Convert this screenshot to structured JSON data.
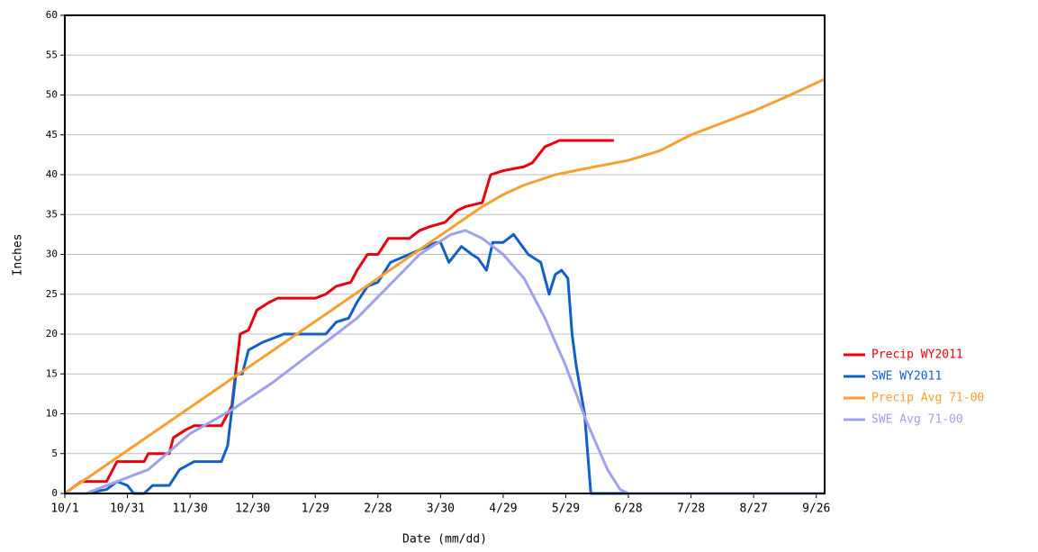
{
  "chart_data": {
    "type": "line",
    "xlabel": "Date (mm/dd)",
    "ylabel": "Inches",
    "xlim": [
      0,
      364
    ],
    "ylim": [
      0,
      60
    ],
    "yticks": [
      0,
      5,
      10,
      15,
      20,
      25,
      30,
      35,
      40,
      45,
      50,
      55,
      60
    ],
    "xticks": [
      {
        "value": 0,
        "label": "10/1"
      },
      {
        "value": 30,
        "label": "10/31"
      },
      {
        "value": 60,
        "label": "11/30"
      },
      {
        "value": 90,
        "label": "12/30"
      },
      {
        "value": 120,
        "label": "1/29"
      },
      {
        "value": 150,
        "label": "2/28"
      },
      {
        "value": 180,
        "label": "3/30"
      },
      {
        "value": 210,
        "label": "4/29"
      },
      {
        "value": 240,
        "label": "5/29"
      },
      {
        "value": 270,
        "label": "6/28"
      },
      {
        "value": 300,
        "label": "7/28"
      },
      {
        "value": 330,
        "label": "8/27"
      },
      {
        "value": 360,
        "label": "9/26"
      }
    ],
    "grid": true,
    "legend": "right",
    "series": [
      {
        "name": "Precip WY2011",
        "color": "#e8000e",
        "x": [
          0,
          8,
          20,
          25,
          38,
          40,
          50,
          52,
          58,
          62,
          75,
          80,
          84,
          88,
          92,
          98,
          102,
          120,
          125,
          130,
          137,
          140,
          145,
          150,
          155,
          165,
          170,
          175,
          182,
          188,
          192,
          200,
          204,
          210,
          220,
          224,
          230,
          237,
          263
        ],
        "values": [
          0,
          1.5,
          1.5,
          4,
          4,
          5,
          5,
          7,
          8,
          8.5,
          8.5,
          11,
          20,
          20.5,
          23,
          24,
          24.5,
          24.5,
          25,
          26,
          26.5,
          28,
          30,
          30,
          32,
          32,
          33,
          33.5,
          34,
          35.5,
          36,
          36.5,
          40,
          40.5,
          41,
          41.5,
          43.5,
          44.3,
          44.3
        ]
      },
      {
        "name": "SWE WY2011",
        "color": "#1060c8",
        "x": [
          0,
          10,
          20,
          25,
          30,
          33,
          38,
          42,
          50,
          55,
          62,
          75,
          78,
          82,
          85,
          88,
          95,
          105,
          125,
          130,
          136,
          140,
          145,
          150,
          156,
          165,
          178,
          180,
          184,
          190,
          195,
          198,
          202,
          205,
          210,
          215,
          222,
          228,
          232,
          235,
          238,
          241,
          243,
          245,
          249,
          252,
          364
        ],
        "values": [
          0,
          0,
          0.5,
          1.5,
          1,
          0,
          0,
          1,
          1,
          3,
          4,
          4,
          6,
          15,
          15,
          18,
          19,
          20,
          20,
          21.5,
          22,
          24,
          26,
          26.5,
          29,
          30,
          31.5,
          31.5,
          29,
          31,
          30,
          29.5,
          28,
          31.5,
          31.5,
          32.5,
          30,
          29,
          25,
          27.5,
          28,
          27,
          20,
          16,
          10,
          0,
          0
        ]
      },
      {
        "name": "Precip Avg 71-00",
        "color": "#f5a030",
        "x": [
          0,
          50,
          100,
          150,
          200,
          210,
          220,
          235,
          250,
          270,
          285,
          300,
          315,
          330,
          345,
          364
        ],
        "values": [
          0,
          9,
          18,
          27,
          36,
          37.5,
          38.7,
          40,
          40.8,
          41.8,
          43,
          45,
          46.5,
          48,
          49.7,
          52
        ]
      },
      {
        "name": "SWE Avg 71-00",
        "color": "#a0a0f0",
        "x": [
          0,
          10,
          20,
          40,
          60,
          80,
          100,
          120,
          140,
          155,
          170,
          185,
          192,
          200,
          210,
          220,
          230,
          240,
          250,
          260,
          266,
          270,
          364
        ],
        "values": [
          0,
          0,
          1,
          3,
          7.5,
          10.5,
          14,
          18,
          22,
          26,
          30,
          32.5,
          33,
          32,
          30,
          27,
          22,
          16,
          9,
          3,
          0.5,
          0,
          0
        ]
      }
    ]
  }
}
